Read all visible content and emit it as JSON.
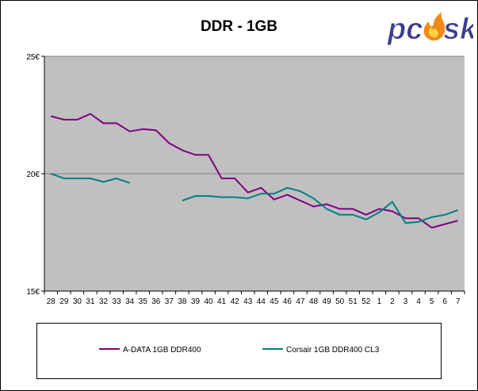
{
  "chart_data": {
    "type": "line",
    "title": "DDR - 1GB",
    "xlabel": "",
    "ylabel": "",
    "categories": [
      "28",
      "29",
      "30",
      "31",
      "32",
      "33",
      "34",
      "35",
      "36",
      "37",
      "38",
      "39",
      "40",
      "41",
      "42",
      "43",
      "44",
      "45",
      "46",
      "47",
      "48",
      "49",
      "50",
      "51",
      "52",
      "1",
      "2",
      "3",
      "4",
      "5",
      "6",
      "7"
    ],
    "y_ticks": [
      "15€",
      "20€",
      "25€"
    ],
    "ylim": [
      15,
      25
    ],
    "grid": "horizontal",
    "legend_position": "bottom",
    "series": [
      {
        "name": "A-DATA 1GB DDR400",
        "color": "#800080",
        "values": [
          22.45,
          22.3,
          22.3,
          22.55,
          22.15,
          22.15,
          21.8,
          21.9,
          21.85,
          21.3,
          21.0,
          20.8,
          20.8,
          19.8,
          19.8,
          19.2,
          19.4,
          18.9,
          19.1,
          18.85,
          18.6,
          18.7,
          18.5,
          18.5,
          18.25,
          18.5,
          18.4,
          18.1,
          18.1,
          17.7,
          17.85,
          18.0
        ]
      },
      {
        "name": "Corsair 1GB DDR400 CL3",
        "color": "#008080",
        "values": [
          20.0,
          19.8,
          19.8,
          19.8,
          19.65,
          19.8,
          19.6,
          null,
          null,
          null,
          18.85,
          19.05,
          19.05,
          19.0,
          19.0,
          18.95,
          19.15,
          19.15,
          19.4,
          19.25,
          18.95,
          18.5,
          18.25,
          18.25,
          18.05,
          18.35,
          18.8,
          17.9,
          17.95,
          18.15,
          18.25,
          18.45
        ]
      }
    ]
  },
  "logo": {
    "text": "pcask",
    "colors": {
      "text": "#3a3c8c",
      "flame": "#f08a1a",
      "flame_inner": "#ffd23f"
    }
  },
  "style": {
    "plot_bg": "#c0c0c0",
    "grid_color": "#808080",
    "axis_color": "#000000"
  }
}
